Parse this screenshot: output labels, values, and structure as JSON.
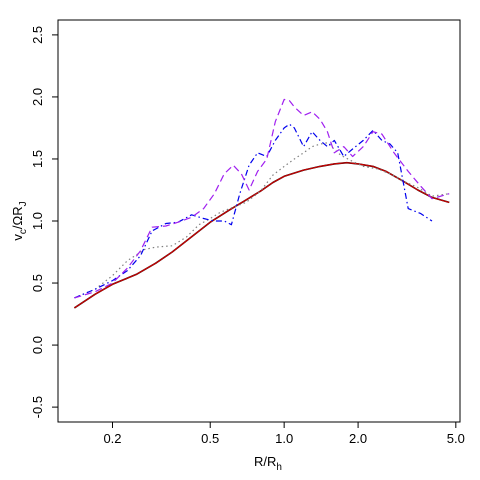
{
  "chart_data": {
    "type": "line",
    "title": "",
    "xlabel": {
      "main": "R/R",
      "sub": "h"
    },
    "ylabel": {
      "main": "v",
      "sub1": "c",
      "mid": "/ΩR",
      "sub2": "J"
    },
    "x_scale": "log",
    "xlim": [
      0.12,
      5.2
    ],
    "ylim": [
      -0.62,
      2.62
    ],
    "x_ticks": [
      {
        "value": 0.2,
        "label": "0.2"
      },
      {
        "value": 0.5,
        "label": "0.5"
      },
      {
        "value": 1.0,
        "label": "1.0"
      },
      {
        "value": 2.0,
        "label": "2.0"
      },
      {
        "value": 5.0,
        "label": "5.0"
      }
    ],
    "y_ticks": [
      {
        "value": -0.5,
        "label": "-0.5"
      },
      {
        "value": 0.0,
        "label": "0.0"
      },
      {
        "value": 0.5,
        "label": "0.5"
      },
      {
        "value": 1.0,
        "label": "1.0"
      },
      {
        "value": 1.5,
        "label": "1.5"
      },
      {
        "value": 2.0,
        "label": "2.0"
      },
      {
        "value": 2.5,
        "label": "2.5"
      }
    ],
    "grid": false,
    "legend": "none",
    "series": [
      {
        "color": "#000000",
        "dash": "",
        "width": 1.6,
        "x": [
          0.14,
          0.17,
          0.2,
          0.25,
          0.3,
          0.35,
          0.4,
          0.5,
          0.6,
          0.7,
          0.8,
          0.9,
          1.0,
          1.2,
          1.4,
          1.6,
          1.8,
          2.0,
          2.3,
          2.6,
          3.0,
          3.5,
          4.0,
          4.7
        ],
        "y": [
          0.3,
          0.41,
          0.49,
          0.57,
          0.66,
          0.75,
          0.84,
          0.99,
          1.09,
          1.17,
          1.24,
          1.31,
          1.36,
          1.41,
          1.44,
          1.46,
          1.47,
          1.46,
          1.44,
          1.4,
          1.33,
          1.25,
          1.19,
          1.15
        ]
      },
      {
        "color": "#cc0000",
        "dash": "",
        "width": 1.2,
        "x": [
          0.14,
          0.17,
          0.2,
          0.25,
          0.3,
          0.35,
          0.4,
          0.5,
          0.6,
          0.7,
          0.8,
          0.9,
          1.0,
          1.2,
          1.4,
          1.6,
          1.8,
          2.0,
          2.3,
          2.6,
          3.0,
          3.5,
          4.0,
          4.7
        ],
        "y": [
          0.3,
          0.41,
          0.49,
          0.57,
          0.66,
          0.75,
          0.84,
          0.99,
          1.09,
          1.17,
          1.24,
          1.31,
          1.36,
          1.41,
          1.44,
          1.46,
          1.47,
          1.46,
          1.44,
          1.4,
          1.33,
          1.25,
          1.19,
          1.15
        ]
      },
      {
        "color": "#808080",
        "dash": "1.5,3",
        "width": 1.2,
        "x": [
          0.14,
          0.17,
          0.2,
          0.23,
          0.27,
          0.3,
          0.35,
          0.4,
          0.45,
          0.5,
          0.55,
          0.6,
          0.7,
          0.8,
          0.9,
          1.0,
          1.1,
          1.2,
          1.3,
          1.4,
          1.5,
          1.7,
          1.9,
          2.1,
          2.4,
          2.7,
          3.0,
          3.5,
          4.0,
          4.7
        ],
        "y": [
          0.38,
          0.45,
          0.56,
          0.68,
          0.77,
          0.79,
          0.8,
          0.87,
          0.97,
          1.02,
          1.07,
          1.1,
          1.15,
          1.24,
          1.37,
          1.44,
          1.5,
          1.55,
          1.6,
          1.62,
          1.63,
          1.53,
          1.48,
          1.44,
          1.42,
          1.38,
          1.33,
          1.27,
          1.2,
          1.22
        ]
      },
      {
        "color": "#0000ee",
        "dash": "6,3,1.5,3",
        "width": 1.2,
        "x": [
          0.14,
          0.17,
          0.2,
          0.23,
          0.26,
          0.29,
          0.33,
          0.37,
          0.42,
          0.47,
          0.52,
          0.57,
          0.61,
          0.66,
          0.72,
          0.78,
          0.85,
          0.92,
          1.0,
          1.05,
          1.1,
          1.2,
          1.3,
          1.4,
          1.5,
          1.6,
          1.75,
          1.9,
          2.1,
          2.3,
          2.5,
          2.7,
          2.9,
          3.2,
          3.6,
          4.0
        ],
        "y": [
          0.38,
          0.45,
          0.52,
          0.6,
          0.72,
          0.92,
          0.98,
          0.99,
          1.05,
          1.02,
          1.0,
          1.0,
          0.97,
          1.22,
          1.45,
          1.55,
          1.52,
          1.65,
          1.75,
          1.78,
          1.75,
          1.6,
          1.72,
          1.65,
          1.6,
          1.65,
          1.52,
          1.58,
          1.65,
          1.73,
          1.65,
          1.62,
          1.55,
          1.1,
          1.06,
          1.0
        ]
      },
      {
        "color": "#a020f0",
        "dash": "7,4",
        "width": 1.2,
        "x": [
          0.14,
          0.17,
          0.2,
          0.23,
          0.26,
          0.29,
          0.33,
          0.37,
          0.42,
          0.47,
          0.52,
          0.57,
          0.62,
          0.67,
          0.72,
          0.78,
          0.85,
          0.92,
          1.0,
          1.05,
          1.1,
          1.2,
          1.3,
          1.4,
          1.5,
          1.6,
          1.75,
          1.9,
          2.1,
          2.3,
          2.5,
          2.8,
          3.2,
          3.6,
          4.0,
          4.7
        ],
        "y": [
          0.38,
          0.43,
          0.5,
          0.62,
          0.76,
          0.95,
          0.96,
          0.99,
          1.03,
          1.1,
          1.22,
          1.38,
          1.45,
          1.38,
          1.25,
          1.4,
          1.5,
          1.8,
          1.98,
          1.97,
          1.92,
          1.85,
          1.88,
          1.82,
          1.72,
          1.55,
          1.6,
          1.52,
          1.6,
          1.72,
          1.7,
          1.55,
          1.4,
          1.28,
          1.18,
          1.22
        ]
      }
    ]
  }
}
